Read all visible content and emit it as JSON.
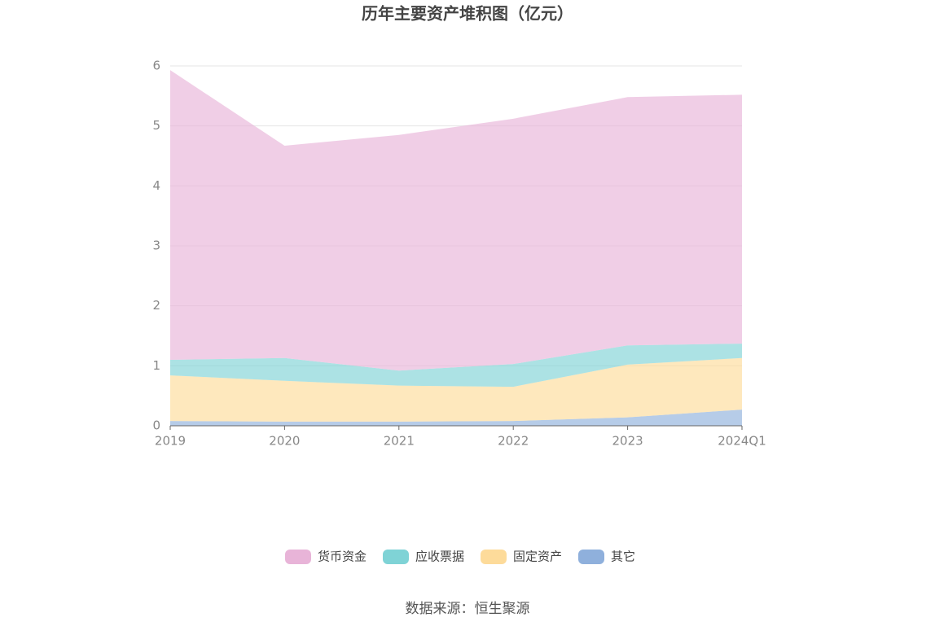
{
  "chart_data": {
    "type": "stacked_area",
    "title": "历年主要资产堆积图（亿元）",
    "categories": [
      "2019",
      "2020",
      "2021",
      "2022",
      "2023",
      "2024Q1"
    ],
    "series": [
      {
        "name": "货币资金",
        "color": "#e8b4d8",
        "values": [
          4.83,
          3.54,
          3.93,
          4.09,
          4.14,
          4.15
        ]
      },
      {
        "name": "应收票据",
        "color": "#7fd3d6",
        "values": [
          0.26,
          0.38,
          0.25,
          0.38,
          0.32,
          0.24
        ]
      },
      {
        "name": "固定资产",
        "color": "#fddb9a",
        "values": [
          0.76,
          0.68,
          0.6,
          0.57,
          0.88,
          0.86
        ]
      },
      {
        "name": "其它",
        "color": "#8fb0dc",
        "values": [
          0.08,
          0.07,
          0.07,
          0.08,
          0.14,
          0.27
        ]
      }
    ],
    "ylim": [
      0,
      6
    ],
    "yticks": [
      0,
      1,
      2,
      3,
      4,
      5,
      6
    ],
    "grid": true,
    "source": "数据来源：恒生聚源"
  }
}
